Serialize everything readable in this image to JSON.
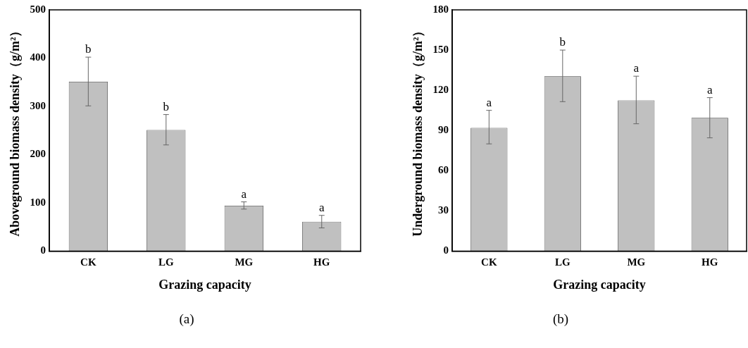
{
  "chart_data": [
    {
      "type": "bar",
      "xlabel": "Grazing capacity",
      "ylabel": "Aboveground biomass density（g/m²）",
      "categories": [
        "CK",
        "LG",
        "MG",
        "HG"
      ],
      "series": [
        {
          "color": "#c0c0c0",
          "values": [
            351,
            251,
            94,
            61
          ],
          "errors": [
            [
              301,
              402
            ],
            [
              220,
              283
            ],
            [
              87,
              102
            ],
            [
              48,
              74
            ]
          ]
        }
      ],
      "ylim": [
        0,
        500
      ],
      "yticks": [
        0,
        100,
        200,
        300,
        400,
        500
      ],
      "grid": false,
      "legend": false,
      "annotations": [
        {
          "text": "b",
          "x": "CK",
          "y": 402
        },
        {
          "text": "b",
          "x": "LG",
          "y": 283
        },
        {
          "text": "a",
          "x": "MG",
          "y": 102
        },
        {
          "text": "a",
          "x": "HG",
          "y": 74
        },
        "(a)"
      ]
    },
    {
      "type": "bar",
      "xlabel": "Grazing capacity",
      "ylabel": "Underground biomass density（g/m²）",
      "categories": [
        "CK",
        "LG",
        "MG",
        "HG"
      ],
      "series": [
        {
          "color": "#c0c0c0",
          "values": [
            92,
            130.5,
            112.5,
            99.5
          ],
          "errors": [
            [
              80,
              105
            ],
            [
              111.5,
              150
            ],
            [
              95,
              130.5
            ],
            [
              84.5,
              114.5
            ]
          ]
        }
      ],
      "ylim": [
        0,
        180
      ],
      "yticks": [
        0,
        30,
        60,
        90,
        120,
        150,
        180
      ],
      "grid": false,
      "legend": false,
      "annotations": [
        {
          "text": "a",
          "x": "CK",
          "y": 105
        },
        {
          "text": "b",
          "x": "LG",
          "y": 150
        },
        {
          "text": "a",
          "x": "MG",
          "y": 130.5
        },
        {
          "text": "a",
          "x": "HG",
          "y": 114.5
        },
        "(b)"
      ]
    }
  ]
}
